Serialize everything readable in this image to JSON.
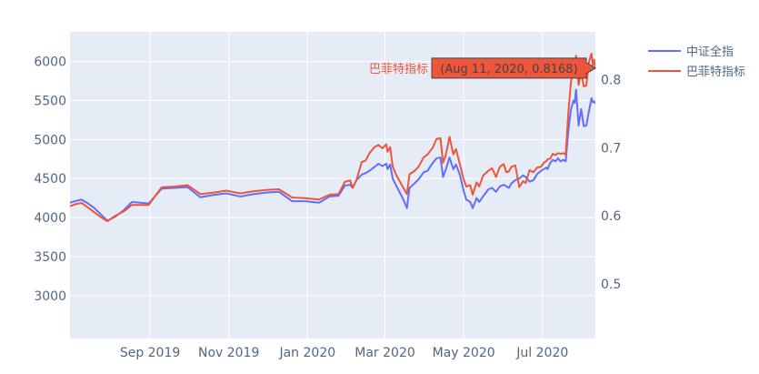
{
  "chart_data": {
    "type": "line",
    "title": "",
    "xlabel": "",
    "ylabel_left": "",
    "ylabel_right": "",
    "x_start": "2019-07-01",
    "x_end": "2020-08-11",
    "x_ticks": [
      {
        "date": "2019-09-01",
        "label": "Sep 2019"
      },
      {
        "date": "2019-11-01",
        "label": "Nov 2019"
      },
      {
        "date": "2020-01-01",
        "label": "Jan 2020"
      },
      {
        "date": "2020-03-01",
        "label": "Mar 2020"
      },
      {
        "date": "2020-05-01",
        "label": "May 2020"
      },
      {
        "date": "2020-07-01",
        "label": "Jul 2020"
      }
    ],
    "y_left": {
      "range": [
        2450,
        6380
      ],
      "ticks": [
        3000,
        3500,
        4000,
        4500,
        5000,
        5500,
        6000
      ]
    },
    "y_right": {
      "range": [
        0.42,
        0.87
      ],
      "ticks": [
        0.5,
        0.6,
        0.7,
        0.8
      ],
      "tick_labels": [
        "0.5",
        "0.6",
        "0.7",
        "0.8"
      ]
    },
    "series": [
      {
        "name": "中证全指",
        "axis": "left",
        "color": "#636efa",
        "points": [
          [
            "2019-07-01",
            4190
          ],
          [
            "2019-07-05",
            4210
          ],
          [
            "2019-07-10",
            4230
          ],
          [
            "2019-07-15",
            4180
          ],
          [
            "2019-07-20",
            4120
          ],
          [
            "2019-07-25",
            4040
          ],
          [
            "2019-07-30",
            3960
          ],
          [
            "2019-08-05",
            4010
          ],
          [
            "2019-08-12",
            4100
          ],
          [
            "2019-08-18",
            4200
          ],
          [
            "2019-08-31",
            4180
          ],
          [
            "2019-09-10",
            4370
          ],
          [
            "2019-09-20",
            4380
          ],
          [
            "2019-09-30",
            4390
          ],
          [
            "2019-10-10",
            4260
          ],
          [
            "2019-10-20",
            4290
          ],
          [
            "2019-10-30",
            4310
          ],
          [
            "2019-11-10",
            4270
          ],
          [
            "2019-11-20",
            4300
          ],
          [
            "2019-11-30",
            4320
          ],
          [
            "2019-12-10",
            4330
          ],
          [
            "2019-12-20",
            4210
          ],
          [
            "2019-12-30",
            4210
          ],
          [
            "2020-01-10",
            4190
          ],
          [
            "2020-01-18",
            4270
          ],
          [
            "2020-01-25",
            4280
          ],
          [
            "2020-01-30",
            4410
          ],
          [
            "2020-02-03",
            4420
          ],
          [
            "2020-02-05",
            4380
          ],
          [
            "2020-02-08",
            4480
          ],
          [
            "2020-02-12",
            4550
          ],
          [
            "2020-02-15",
            4570
          ],
          [
            "2020-02-18",
            4600
          ],
          [
            "2020-02-22",
            4650
          ],
          [
            "2020-02-25",
            4690
          ],
          [
            "2020-02-28",
            4660
          ],
          [
            "2020-03-02",
            4690
          ],
          [
            "2020-03-03",
            4620
          ],
          [
            "2020-03-05",
            4680
          ],
          [
            "2020-03-07",
            4500
          ],
          [
            "2020-03-10",
            4400
          ],
          [
            "2020-03-15",
            4240
          ],
          [
            "2020-03-18",
            4120
          ],
          [
            "2020-03-20",
            4380
          ],
          [
            "2020-03-24",
            4440
          ],
          [
            "2020-03-27",
            4490
          ],
          [
            "2020-03-31",
            4580
          ],
          [
            "2020-04-03",
            4600
          ],
          [
            "2020-04-07",
            4700
          ],
          [
            "2020-04-10",
            4760
          ],
          [
            "2020-04-13",
            4770
          ],
          [
            "2020-04-15",
            4520
          ],
          [
            "2020-04-17",
            4610
          ],
          [
            "2020-04-20",
            4770
          ],
          [
            "2020-04-23",
            4620
          ],
          [
            "2020-04-25",
            4680
          ],
          [
            "2020-04-28",
            4550
          ],
          [
            "2020-05-01",
            4340
          ],
          [
            "2020-05-03",
            4230
          ],
          [
            "2020-05-06",
            4200
          ],
          [
            "2020-05-08",
            4120
          ],
          [
            "2020-05-11",
            4250
          ],
          [
            "2020-05-13",
            4200
          ],
          [
            "2020-05-16",
            4270
          ],
          [
            "2020-05-20",
            4360
          ],
          [
            "2020-05-23",
            4380
          ],
          [
            "2020-05-26",
            4330
          ],
          [
            "2020-05-29",
            4400
          ],
          [
            "2020-06-01",
            4420
          ],
          [
            "2020-06-03",
            4400
          ],
          [
            "2020-06-05",
            4380
          ],
          [
            "2020-06-07",
            4440
          ],
          [
            "2020-06-10",
            4480
          ],
          [
            "2020-06-13",
            4500
          ],
          [
            "2020-06-16",
            4540
          ],
          [
            "2020-06-18",
            4520
          ],
          [
            "2020-06-21",
            4460
          ],
          [
            "2020-06-24",
            4480
          ],
          [
            "2020-06-27",
            4560
          ],
          [
            "2020-06-30",
            4600
          ],
          [
            "2020-07-02",
            4620
          ],
          [
            "2020-07-04",
            4640
          ],
          [
            "2020-07-05",
            4620
          ],
          [
            "2020-07-07",
            4700
          ],
          [
            "2020-07-09",
            4740
          ],
          [
            "2020-07-11",
            4720
          ],
          [
            "2020-07-13",
            4760
          ],
          [
            "2020-07-15",
            4720
          ],
          [
            "2020-07-17",
            4740
          ],
          [
            "2020-07-19",
            4720
          ],
          [
            "2020-07-21",
            5100
          ],
          [
            "2020-07-23",
            5380
          ],
          [
            "2020-07-25",
            5500
          ],
          [
            "2020-07-26",
            5470
          ],
          [
            "2020-07-27",
            5640
          ],
          [
            "2020-07-29",
            5180
          ],
          [
            "2020-07-31",
            5390
          ],
          [
            "2020-08-02",
            5170
          ],
          [
            "2020-08-04",
            5180
          ],
          [
            "2020-08-06",
            5360
          ],
          [
            "2020-08-08",
            5530
          ],
          [
            "2020-08-09",
            5480
          ],
          [
            "2020-08-10",
            5490
          ],
          [
            "2020-08-11",
            5460
          ]
        ]
      },
      {
        "name": "巴菲特指标",
        "axis": "right",
        "color": "#ef553b",
        "points": [
          [
            "2019-07-01",
            0.614
          ],
          [
            "2019-07-05",
            0.617
          ],
          [
            "2019-07-10",
            0.619
          ],
          [
            "2019-07-15",
            0.612
          ],
          [
            "2019-07-20",
            0.605
          ],
          [
            "2019-07-25",
            0.598
          ],
          [
            "2019-07-30",
            0.592
          ],
          [
            "2019-08-05",
            0.6
          ],
          [
            "2019-08-12",
            0.607
          ],
          [
            "2019-08-18",
            0.616
          ],
          [
            "2019-08-31",
            0.616
          ],
          [
            "2019-09-10",
            0.642
          ],
          [
            "2019-09-20",
            0.643
          ],
          [
            "2019-09-30",
            0.645
          ],
          [
            "2019-10-10",
            0.632
          ],
          [
            "2019-10-20",
            0.634
          ],
          [
            "2019-10-30",
            0.637
          ],
          [
            "2019-11-10",
            0.633
          ],
          [
            "2019-11-20",
            0.636
          ],
          [
            "2019-11-30",
            0.638
          ],
          [
            "2019-12-10",
            0.639
          ],
          [
            "2019-12-20",
            0.627
          ],
          [
            "2019-12-30",
            0.626
          ],
          [
            "2020-01-10",
            0.624
          ],
          [
            "2020-01-18",
            0.631
          ],
          [
            "2020-01-25",
            0.632
          ],
          [
            "2020-01-30",
            0.65
          ],
          [
            "2020-02-03",
            0.652
          ],
          [
            "2020-02-05",
            0.641
          ],
          [
            "2020-02-08",
            0.653
          ],
          [
            "2020-02-12",
            0.679
          ],
          [
            "2020-02-15",
            0.681
          ],
          [
            "2020-02-18",
            0.692
          ],
          [
            "2020-02-22",
            0.701
          ],
          [
            "2020-02-25",
            0.704
          ],
          [
            "2020-02-28",
            0.699
          ],
          [
            "2020-03-02",
            0.705
          ],
          [
            "2020-03-03",
            0.694
          ],
          [
            "2020-03-05",
            0.701
          ],
          [
            "2020-03-07",
            0.672
          ],
          [
            "2020-03-10",
            0.659
          ],
          [
            "2020-03-15",
            0.642
          ],
          [
            "2020-03-18",
            0.632
          ],
          [
            "2020-03-20",
            0.661
          ],
          [
            "2020-03-24",
            0.666
          ],
          [
            "2020-03-27",
            0.672
          ],
          [
            "2020-03-31",
            0.686
          ],
          [
            "2020-04-03",
            0.69
          ],
          [
            "2020-04-07",
            0.7
          ],
          [
            "2020-04-10",
            0.713
          ],
          [
            "2020-04-13",
            0.714
          ],
          [
            "2020-04-15",
            0.678
          ],
          [
            "2020-04-17",
            0.688
          ],
          [
            "2020-04-20",
            0.716
          ],
          [
            "2020-04-23",
            0.69
          ],
          [
            "2020-04-25",
            0.698
          ],
          [
            "2020-04-28",
            0.676
          ],
          [
            "2020-05-01",
            0.653
          ],
          [
            "2020-05-03",
            0.643
          ],
          [
            "2020-05-06",
            0.645
          ],
          [
            "2020-05-08",
            0.631
          ],
          [
            "2020-05-11",
            0.649
          ],
          [
            "2020-05-13",
            0.643
          ],
          [
            "2020-05-16",
            0.659
          ],
          [
            "2020-05-20",
            0.666
          ],
          [
            "2020-05-23",
            0.67
          ],
          [
            "2020-05-26",
            0.657
          ],
          [
            "2020-05-29",
            0.672
          ],
          [
            "2020-06-01",
            0.676
          ],
          [
            "2020-06-03",
            0.664
          ],
          [
            "2020-06-05",
            0.665
          ],
          [
            "2020-06-07",
            0.672
          ],
          [
            "2020-06-10",
            0.674
          ],
          [
            "2020-06-13",
            0.642
          ],
          [
            "2020-06-16",
            0.651
          ],
          [
            "2020-06-18",
            0.648
          ],
          [
            "2020-06-21",
            0.667
          ],
          [
            "2020-06-24",
            0.664
          ],
          [
            "2020-06-27",
            0.671
          ],
          [
            "2020-06-30",
            0.672
          ],
          [
            "2020-07-02",
            0.678
          ],
          [
            "2020-07-04",
            0.68
          ],
          [
            "2020-07-05",
            0.683
          ],
          [
            "2020-07-07",
            0.684
          ],
          [
            "2020-07-09",
            0.691
          ],
          [
            "2020-07-11",
            0.689
          ],
          [
            "2020-07-13",
            0.692
          ],
          [
            "2020-07-15",
            0.691
          ],
          [
            "2020-07-17",
            0.692
          ],
          [
            "2020-07-19",
            0.69
          ],
          [
            "2020-07-21",
            0.75
          ],
          [
            "2020-07-23",
            0.795
          ],
          [
            "2020-07-25",
            0.82
          ],
          [
            "2020-07-26",
            0.812
          ],
          [
            "2020-07-27",
            0.835
          ],
          [
            "2020-07-29",
            0.792
          ],
          [
            "2020-07-31",
            0.811
          ],
          [
            "2020-08-02",
            0.79
          ],
          [
            "2020-08-04",
            0.791
          ],
          [
            "2020-08-06",
            0.826
          ],
          [
            "2020-08-08",
            0.838
          ],
          [
            "2020-08-09",
            0.821
          ],
          [
            "2020-08-10",
            0.829
          ],
          [
            "2020-08-11",
            0.8168
          ]
        ]
      }
    ],
    "legend": {
      "placement": "top-right"
    },
    "hover": {
      "series": "巴菲特指标",
      "label": "(Aug 11, 2020, 0.8168)",
      "date": "2020-08-11",
      "value": 0.8168
    }
  }
}
